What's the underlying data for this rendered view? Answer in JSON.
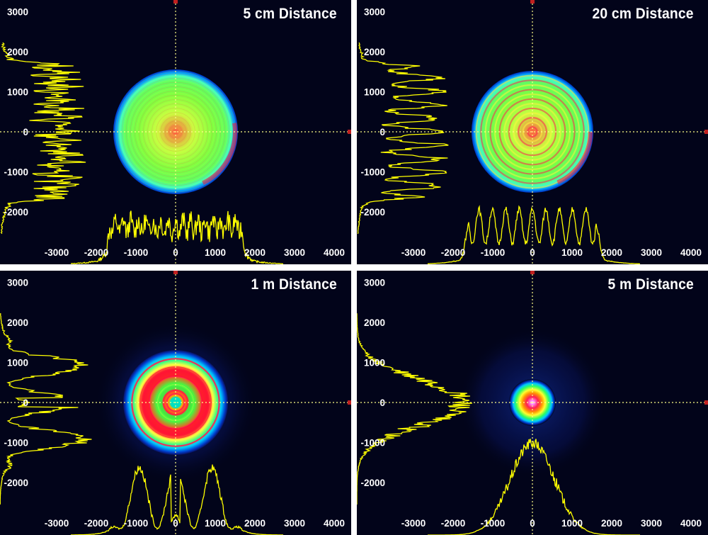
{
  "panels": [
    {
      "title": "5 cm Distance",
      "beam": "large-flat"
    },
    {
      "title": "20 cm Distance",
      "beam": "large-rings"
    },
    {
      "title": "1 m Distance",
      "beam": "medium-rings"
    },
    {
      "title": "5 m Distance",
      "beam": "small-gaussian"
    }
  ],
  "y_ticks": [
    "3000",
    "2000",
    "1000",
    "0",
    "-1000",
    "-2000"
  ],
  "x_ticks": [
    "-3000",
    "-2000",
    "-1000",
    "0",
    "1000",
    "2000",
    "3000",
    "4000"
  ],
  "colors": {
    "background": "#02041a",
    "profile": "#ffff00",
    "crosshair": "#ffff88"
  }
}
